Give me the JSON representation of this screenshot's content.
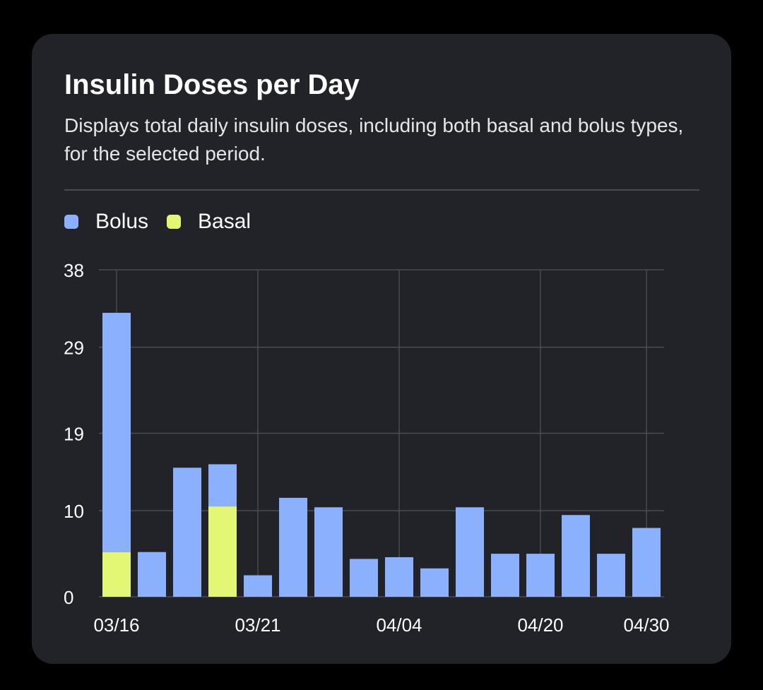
{
  "card": {
    "title": "Insulin Doses per Day",
    "subtitle": "Displays total daily insulin doses, including both basal and bolus types, for the selected period."
  },
  "colors": {
    "bolus": "#8bb0fd",
    "basal": "#e4f774",
    "grid": "#4a4b52",
    "axis_text": "#ffffff"
  },
  "chart_data": {
    "type": "bar",
    "stacked": true,
    "legend_position": "top-left",
    "grid": true,
    "ylim": [
      0,
      38
    ],
    "y_ticks": [
      "0",
      "10",
      "19",
      "29",
      "38"
    ],
    "x_tick_labels": [
      "03/16",
      "03/21",
      "04/04",
      "04/20",
      "04/30"
    ],
    "x_tick_bar_index": [
      0,
      4,
      8,
      12,
      15
    ],
    "bar_count": 16,
    "series": [
      {
        "name": "Basal",
        "color": "#e4f774",
        "values": [
          5.2,
          0,
          0,
          10.5,
          0,
          0,
          0,
          0,
          0,
          0,
          0,
          0,
          0,
          0,
          0,
          0
        ]
      },
      {
        "name": "Bolus",
        "color": "#8bb0fd",
        "values": [
          27.8,
          5.2,
          15.0,
          4.9,
          2.5,
          11.5,
          10.4,
          4.4,
          4.6,
          3.3,
          10.4,
          5.0,
          5.0,
          9.5,
          5.0,
          8.0
        ]
      }
    ]
  }
}
